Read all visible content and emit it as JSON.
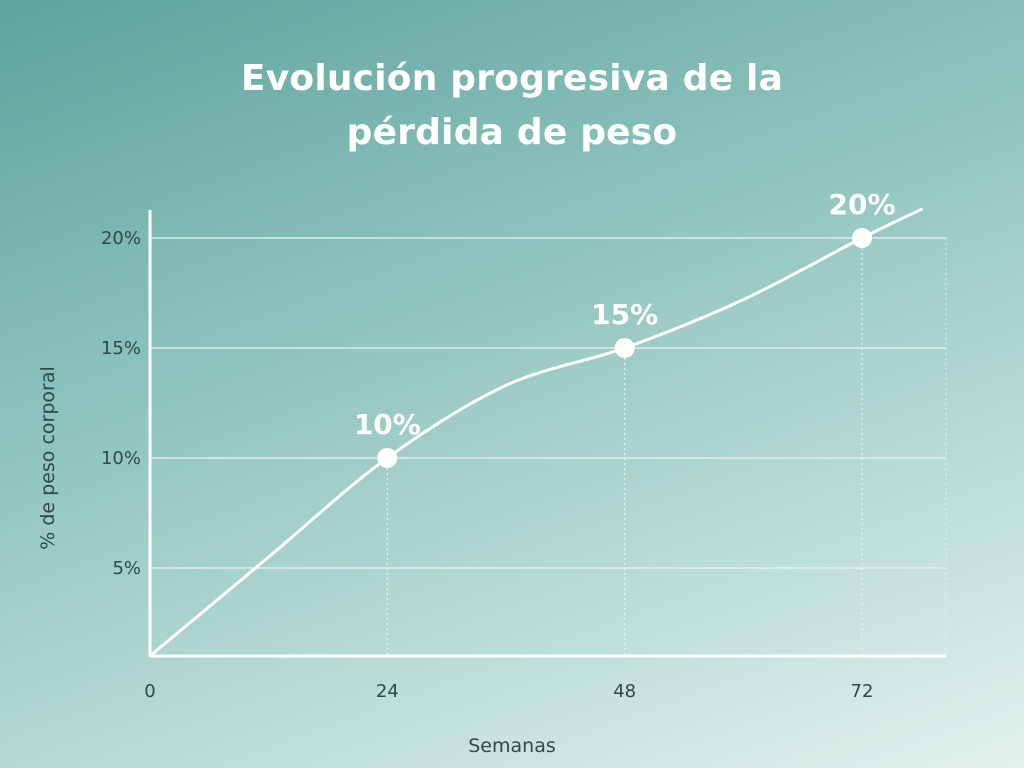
{
  "title": {
    "line1": "Evolución progresiva de la",
    "line2": "pérdida de peso"
  },
  "colors": {
    "line": "#ffffff",
    "text": "#2d4a47",
    "grid": "#e8f3f1"
  },
  "chart_data": {
    "type": "line",
    "title": "Evolución progresiva de la pérdida de peso",
    "xlabel": "Semanas",
    "ylabel": "% de peso corporal",
    "xlim": [
      0,
      80
    ],
    "ylim": [
      1,
      21
    ],
    "x_ticks": [
      "0",
      "24",
      "48",
      "72"
    ],
    "y_ticks": [
      "5%",
      "10%",
      "15%",
      "20%"
    ],
    "grid": true,
    "series": [
      {
        "values": [
          {
            "x": 0,
            "y": 1
          },
          {
            "x": 12,
            "y": 5.5
          },
          {
            "x": 24,
            "y": 10
          },
          {
            "x": 36,
            "y": 13.3
          },
          {
            "x": 48,
            "y": 15
          },
          {
            "x": 60,
            "y": 17.2
          },
          {
            "x": 72,
            "y": 20
          },
          {
            "x": 78,
            "y": 21.3
          }
        ]
      }
    ],
    "highlighted_points": [
      {
        "x": 24,
        "y": 10,
        "label": "10%"
      },
      {
        "x": 48,
        "y": 15,
        "label": "15%"
      },
      {
        "x": 72,
        "y": 20,
        "label": "20%"
      }
    ]
  }
}
